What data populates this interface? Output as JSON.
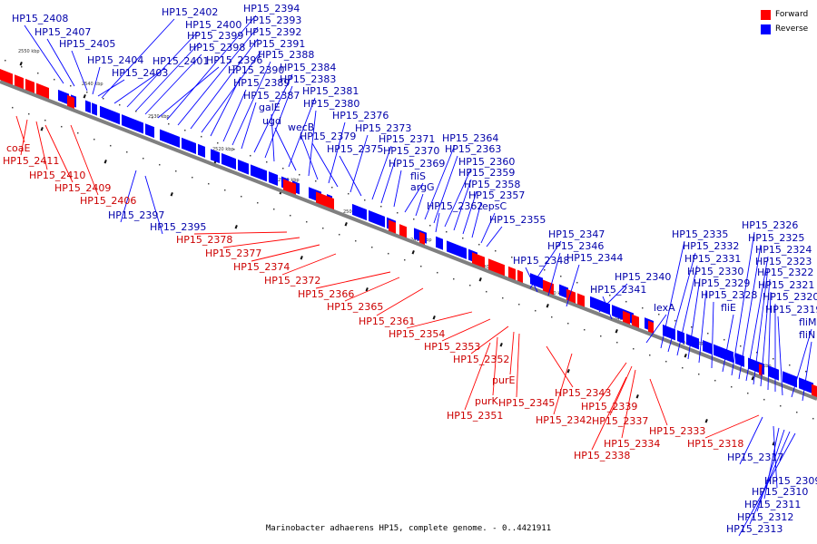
{
  "caption": "Marinobacter adhaerens HP15, complete genome. - 0..4421911",
  "legend": [
    {
      "label": "Forward",
      "color": "#ff0000"
    },
    {
      "label": "Reverse",
      "color": "#0000ff"
    }
  ],
  "colors": {
    "forward": "#ff0000",
    "forward_label": "#cc0000",
    "reverse": "#0000ff",
    "reverse_label": "#0000aa",
    "backbone": "#808080"
  },
  "ticks": [
    "2550 kbp",
    "2540 kbp",
    "2530 kbp",
    "2520 kbp",
    "2510 kbp",
    "2500 kbp",
    "2490 kbp",
    "2480 kbp",
    "2470 kbp",
    "2460 kbp",
    "2450 kbp",
    "2440 kbp"
  ],
  "reverse_labels": [
    "HP15_2408",
    "HP15_2407",
    "HP15_2405",
    "HP15_2404",
    "HP15_2403",
    "HP15_2402",
    "HP15_2401",
    "HP15_2400",
    "HP15_2399",
    "HP15_2398",
    "HP15_2396",
    "HP15_2394",
    "HP15_2393",
    "HP15_2392",
    "HP15_2391",
    "HP15_2390",
    "HP15_2389",
    "HP15_2388",
    "HP15_2387",
    "HP15_2384",
    "HP15_2383",
    "galE",
    "HP15_2381",
    "ugd",
    "HP15_2380",
    "wecB",
    "HP15_2376",
    "HP15_2379",
    "HP15_2373",
    "HP15_2375",
    "HP15_2371",
    "HP15_2370",
    "HP15_2369",
    "fliS",
    "argG",
    "HP15_2364",
    "HP15_2363",
    "HP15_2360",
    "HP15_2359",
    "HP15_2358",
    "HP15_2357",
    "HP15_2362",
    "epsC",
    "HP15_2355",
    "HP15_2347",
    "HP15_2348",
    "HP15_2346",
    "HP15_2344",
    "HP15_2340",
    "HP15_2341",
    "lexA",
    "HP15_2335",
    "HP15_2332",
    "HP15_2331",
    "HP15_2330",
    "HP15_2329",
    "HP15_2328",
    "fliE",
    "HP15_2326",
    "HP15_2325",
    "HP15_2324",
    "HP15_2323",
    "HP15_2322",
    "HP15_2321",
    "HP15_2320",
    "HP15_2319",
    "fliM",
    "fliN",
    "HP15_2397",
    "HP15_2395",
    "HP15_2317",
    "HP15_2309",
    "HP15_2310",
    "HP15_2311",
    "HP15_2312",
    "HP15_2313"
  ],
  "forward_labels": [
    "coaE",
    "HP15_2411",
    "HP15_2410",
    "HP15_2409",
    "HP15_2406",
    "HP15_2378",
    "HP15_2377",
    "HP15_2374",
    "HP15_2372",
    "HP15_2366",
    "HP15_2365",
    "HP15_2361",
    "HP15_2354",
    "HP15_2353",
    "HP15_2352",
    "purE",
    "purK",
    "HP15_2345",
    "HP15_2351",
    "HP15_2343",
    "HP15_2342",
    "HP15_2339",
    "HP15_2337",
    "HP15_2334",
    "HP15_2338",
    "HP15_2333",
    "HP15_2318"
  ]
}
